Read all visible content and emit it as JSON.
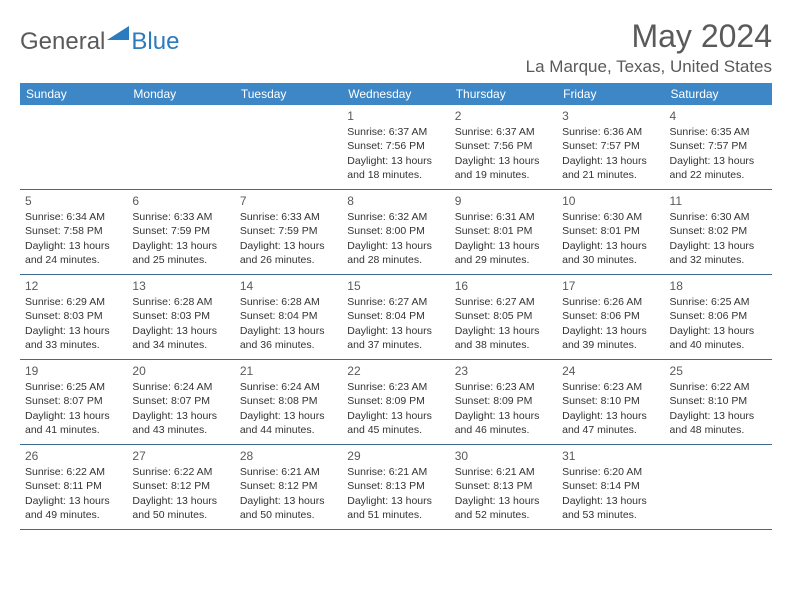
{
  "logo": {
    "general": "General",
    "blue": "Blue"
  },
  "title": "May 2024",
  "location": "La Marque, Texas, United States",
  "header_bg": "#3d87c7",
  "text_color": "#5a5a5a",
  "day_headers": [
    "Sunday",
    "Monday",
    "Tuesday",
    "Wednesday",
    "Thursday",
    "Friday",
    "Saturday"
  ],
  "weeks": [
    [
      null,
      null,
      null,
      {
        "n": "1",
        "sr": "6:37 AM",
        "ss": "7:56 PM",
        "dl": "13 hours and 18 minutes."
      },
      {
        "n": "2",
        "sr": "6:37 AM",
        "ss": "7:56 PM",
        "dl": "13 hours and 19 minutes."
      },
      {
        "n": "3",
        "sr": "6:36 AM",
        "ss": "7:57 PM",
        "dl": "13 hours and 21 minutes."
      },
      {
        "n": "4",
        "sr": "6:35 AM",
        "ss": "7:57 PM",
        "dl": "13 hours and 22 minutes."
      }
    ],
    [
      {
        "n": "5",
        "sr": "6:34 AM",
        "ss": "7:58 PM",
        "dl": "13 hours and 24 minutes."
      },
      {
        "n": "6",
        "sr": "6:33 AM",
        "ss": "7:59 PM",
        "dl": "13 hours and 25 minutes."
      },
      {
        "n": "7",
        "sr": "6:33 AM",
        "ss": "7:59 PM",
        "dl": "13 hours and 26 minutes."
      },
      {
        "n": "8",
        "sr": "6:32 AM",
        "ss": "8:00 PM",
        "dl": "13 hours and 28 minutes."
      },
      {
        "n": "9",
        "sr": "6:31 AM",
        "ss": "8:01 PM",
        "dl": "13 hours and 29 minutes."
      },
      {
        "n": "10",
        "sr": "6:30 AM",
        "ss": "8:01 PM",
        "dl": "13 hours and 30 minutes."
      },
      {
        "n": "11",
        "sr": "6:30 AM",
        "ss": "8:02 PM",
        "dl": "13 hours and 32 minutes."
      }
    ],
    [
      {
        "n": "12",
        "sr": "6:29 AM",
        "ss": "8:03 PM",
        "dl": "13 hours and 33 minutes."
      },
      {
        "n": "13",
        "sr": "6:28 AM",
        "ss": "8:03 PM",
        "dl": "13 hours and 34 minutes."
      },
      {
        "n": "14",
        "sr": "6:28 AM",
        "ss": "8:04 PM",
        "dl": "13 hours and 36 minutes."
      },
      {
        "n": "15",
        "sr": "6:27 AM",
        "ss": "8:04 PM",
        "dl": "13 hours and 37 minutes."
      },
      {
        "n": "16",
        "sr": "6:27 AM",
        "ss": "8:05 PM",
        "dl": "13 hours and 38 minutes."
      },
      {
        "n": "17",
        "sr": "6:26 AM",
        "ss": "8:06 PM",
        "dl": "13 hours and 39 minutes."
      },
      {
        "n": "18",
        "sr": "6:25 AM",
        "ss": "8:06 PM",
        "dl": "13 hours and 40 minutes."
      }
    ],
    [
      {
        "n": "19",
        "sr": "6:25 AM",
        "ss": "8:07 PM",
        "dl": "13 hours and 41 minutes."
      },
      {
        "n": "20",
        "sr": "6:24 AM",
        "ss": "8:07 PM",
        "dl": "13 hours and 43 minutes."
      },
      {
        "n": "21",
        "sr": "6:24 AM",
        "ss": "8:08 PM",
        "dl": "13 hours and 44 minutes."
      },
      {
        "n": "22",
        "sr": "6:23 AM",
        "ss": "8:09 PM",
        "dl": "13 hours and 45 minutes."
      },
      {
        "n": "23",
        "sr": "6:23 AM",
        "ss": "8:09 PM",
        "dl": "13 hours and 46 minutes."
      },
      {
        "n": "24",
        "sr": "6:23 AM",
        "ss": "8:10 PM",
        "dl": "13 hours and 47 minutes."
      },
      {
        "n": "25",
        "sr": "6:22 AM",
        "ss": "8:10 PM",
        "dl": "13 hours and 48 minutes."
      }
    ],
    [
      {
        "n": "26",
        "sr": "6:22 AM",
        "ss": "8:11 PM",
        "dl": "13 hours and 49 minutes."
      },
      {
        "n": "27",
        "sr": "6:22 AM",
        "ss": "8:12 PM",
        "dl": "13 hours and 50 minutes."
      },
      {
        "n": "28",
        "sr": "6:21 AM",
        "ss": "8:12 PM",
        "dl": "13 hours and 50 minutes."
      },
      {
        "n": "29",
        "sr": "6:21 AM",
        "ss": "8:13 PM",
        "dl": "13 hours and 51 minutes."
      },
      {
        "n": "30",
        "sr": "6:21 AM",
        "ss": "8:13 PM",
        "dl": "13 hours and 52 minutes."
      },
      {
        "n": "31",
        "sr": "6:20 AM",
        "ss": "8:14 PM",
        "dl": "13 hours and 53 minutes."
      },
      null
    ]
  ],
  "labels": {
    "sunrise": "Sunrise:",
    "sunset": "Sunset:",
    "daylight": "Daylight:"
  }
}
